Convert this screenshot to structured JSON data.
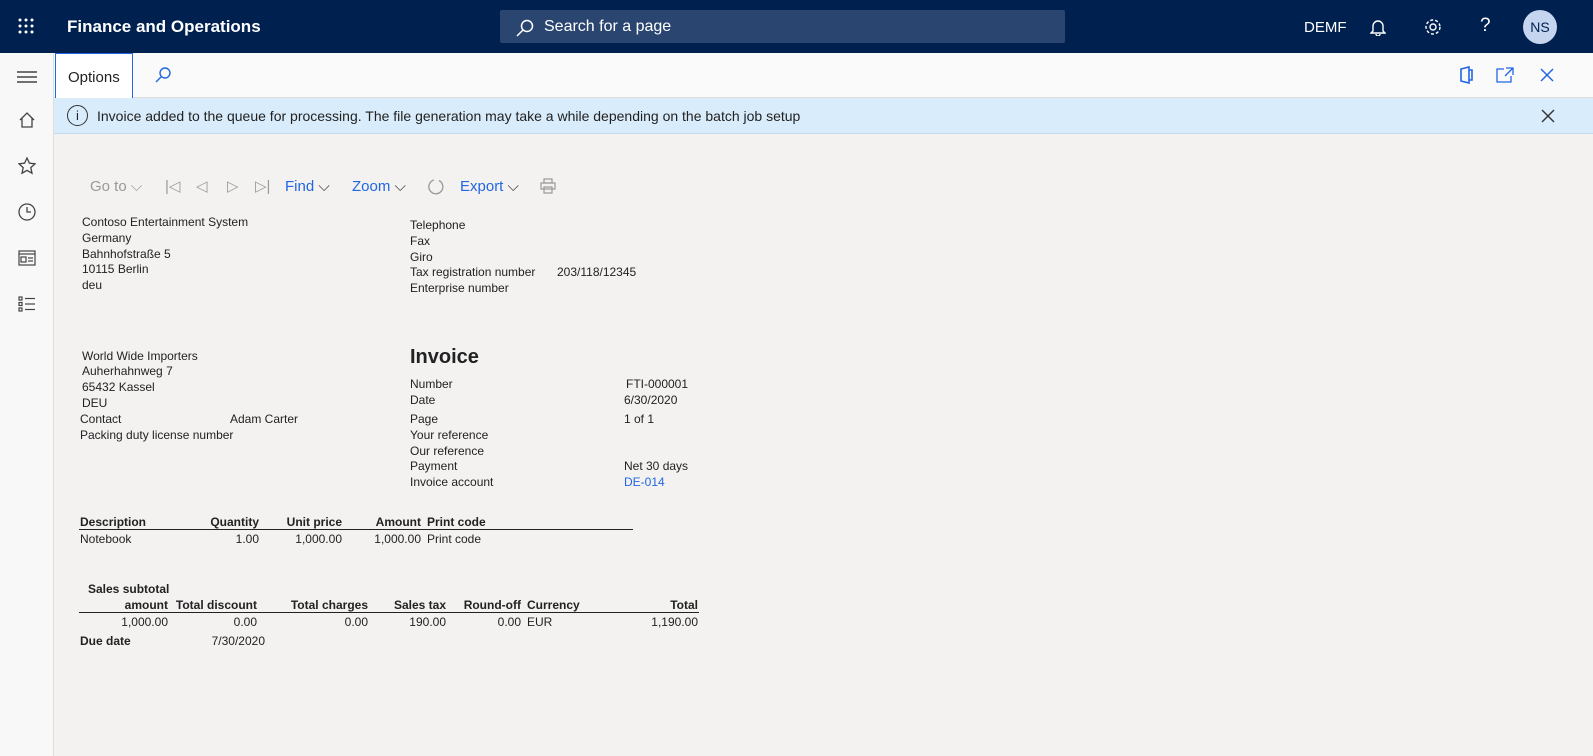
{
  "app": {
    "title": "Finance and Operations",
    "search_placeholder": "Search for a page",
    "company": "DEMF",
    "avatar": "NS"
  },
  "options": {
    "tab": "Options"
  },
  "info": {
    "message": "Invoice added to the queue for processing. The file generation may take a while depending on the batch job setup"
  },
  "toolbar": {
    "goto": "Go to",
    "find": "Find",
    "zoom": "Zoom",
    "export": "Export"
  },
  "sender": {
    "lines": [
      "Contoso Entertainment System",
      "Germany",
      "Bahnhofstraße 5",
      "10115 Berlin",
      "deu"
    ]
  },
  "sender_info": {
    "telephone": "Telephone",
    "fax": "Fax",
    "giro": "Giro",
    "tax_label": "Tax registration number",
    "tax_value": "203/118/12345",
    "enterprise": "Enterprise number"
  },
  "customer": {
    "lines": [
      "World Wide Importers",
      "Auherhahnweg 7",
      "65432 Kassel",
      "DEU"
    ],
    "contact_label": "Contact",
    "contact_value": "Adam Carter",
    "packing": "Packing duty license number"
  },
  "invoice": {
    "title": "Invoice",
    "fields": [
      {
        "label": "Number",
        "value": "FTI-000001"
      },
      {
        "label": "Date",
        "value": "6/30/2020"
      },
      {
        "label": "Page",
        "value": "1 of 1"
      },
      {
        "label": "Your reference",
        "value": ""
      },
      {
        "label": "Our reference",
        "value": ""
      },
      {
        "label": "Payment",
        "value": "Net 30 days"
      },
      {
        "label": "Invoice account",
        "value": "DE-014"
      }
    ]
  },
  "lines": {
    "headers": [
      "Description",
      "Quantity",
      "Unit price",
      "Amount",
      "Print code"
    ],
    "rows": [
      [
        "Notebook",
        "1.00",
        "1,000.00",
        "1,000.00",
        "Print code"
      ]
    ]
  },
  "totals": {
    "headers": [
      "Sales subtotal",
      "amount",
      "Total discount",
      "Total charges",
      "Sales tax",
      "Round-off",
      "Currency",
      "Total"
    ],
    "values": [
      "1,000.00",
      "0.00",
      "0.00",
      "190.00",
      "0.00",
      "EUR",
      "1,190.00"
    ],
    "due_label": "Due date",
    "due_value": "7/30/2020"
  }
}
